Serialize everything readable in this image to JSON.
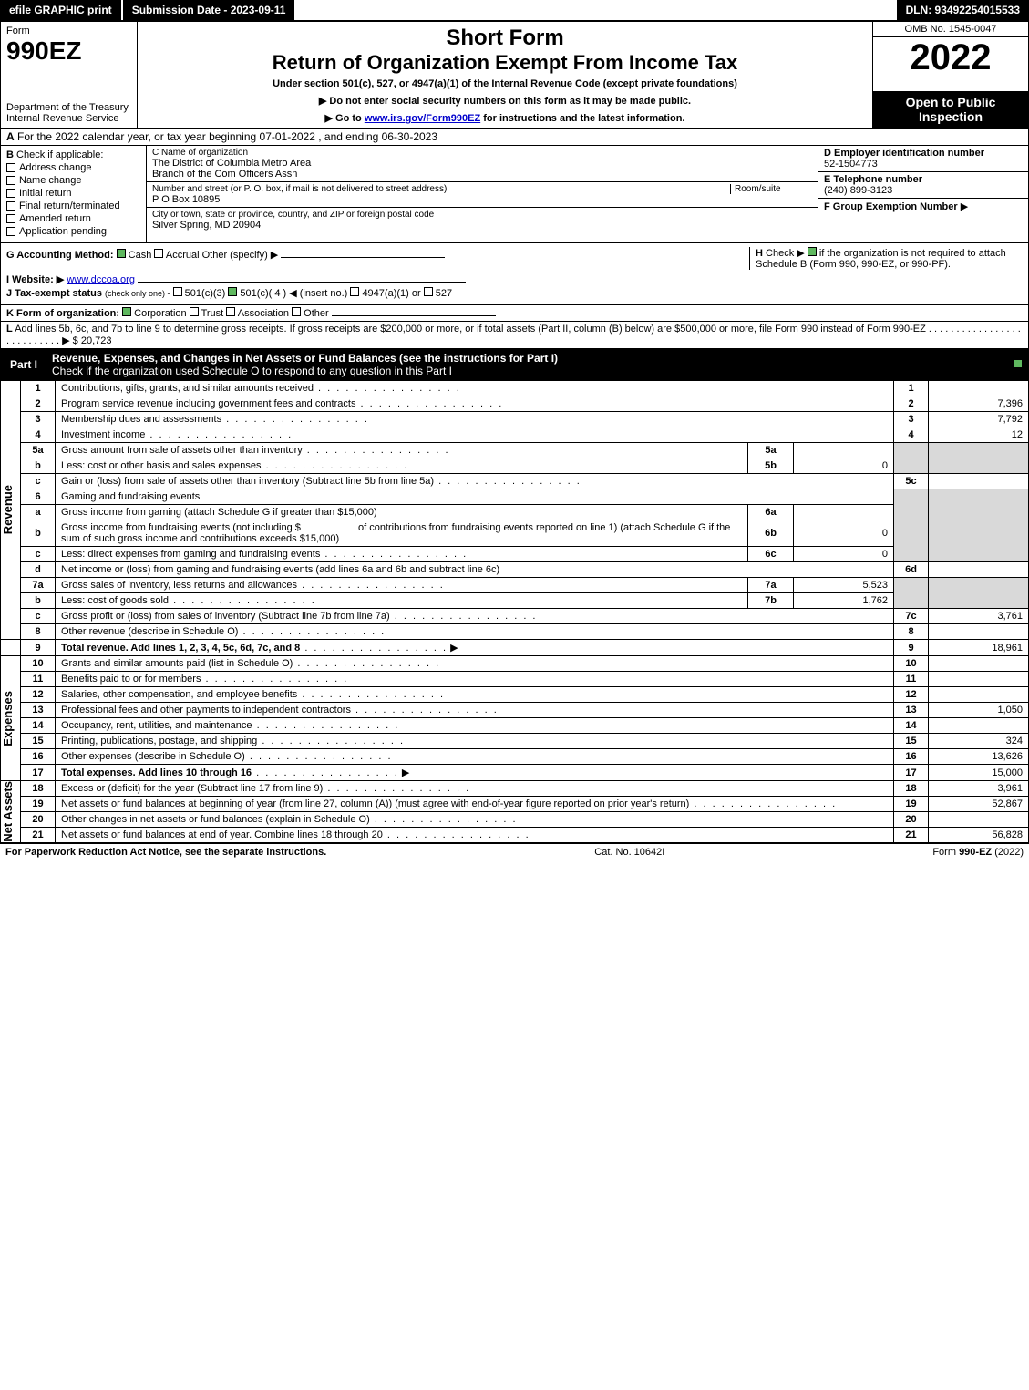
{
  "topbar": {
    "efile": "efile GRAPHIC print",
    "submission": "Submission Date - 2023-09-11",
    "dln": "DLN: 93492254015533"
  },
  "header": {
    "form_label": "Form",
    "form_no": "990EZ",
    "dept": "Department of the Treasury\nInternal Revenue Service",
    "short_form": "Short Form",
    "return_title": "Return of Organization Exempt From Income Tax",
    "under_section": "Under section 501(c), 527, or 4947(a)(1) of the Internal Revenue Code (except private foundations)",
    "instr1": "▶ Do not enter social security numbers on this form as it may be made public.",
    "instr2_a": "▶ Go to ",
    "instr2_link": "www.irs.gov/Form990EZ",
    "instr2_b": " for instructions and the latest information.",
    "omb": "OMB No. 1545-0047",
    "year": "2022",
    "open": "Open to Public Inspection"
  },
  "section_a": {
    "label": "A",
    "text": "For the 2022 calendar year, or tax year beginning 07-01-2022 , and ending 06-30-2023"
  },
  "col_b": {
    "label": "B",
    "heading": "Check if applicable:",
    "items": [
      {
        "label": "Address change",
        "checked": false
      },
      {
        "label": "Name change",
        "checked": false
      },
      {
        "label": "Initial return",
        "checked": false
      },
      {
        "label": "Final return/terminated",
        "checked": false
      },
      {
        "label": "Amended return",
        "checked": false
      },
      {
        "label": "Application pending",
        "checked": false
      }
    ]
  },
  "col_c": {
    "label_name": "C Name of organization",
    "name1": "The District of Columbia Metro Area",
    "name2": "Branch of the Com Officers Assn",
    "label_street": "Number and street (or P. O. box, if mail is not delivered to street address)",
    "room_label": "Room/suite",
    "street": "P O Box 10895",
    "label_city": "City or town, state or province, country, and ZIP or foreign postal code",
    "city": "Silver Spring, MD  20904"
  },
  "col_de": {
    "d_label": "D Employer identification number",
    "d_val": "52-1504773",
    "e_label": "E Telephone number",
    "e_val": "(240) 899-3123",
    "f_label": "F Group Exemption Number",
    "f_arrow": "▶"
  },
  "row_g": {
    "g_label": "G Accounting Method:",
    "cash": "Cash",
    "accrual": "Accrual",
    "other": "Other (specify) ▶",
    "h_label": "H",
    "h_text1": "Check ▶",
    "h_text2": "if the organization is not required to attach Schedule B (Form 990, 990-EZ, or 990-PF).",
    "i_label": "I Website: ▶",
    "i_val": "www.dccoa.org",
    "j_label": "J Tax-exempt status",
    "j_note": "(check only one) -",
    "j_501c3": "501(c)(3)",
    "j_501c": "501(c)( 4 ) ◀ (insert no.)",
    "j_4947": "4947(a)(1) or",
    "j_527": "527"
  },
  "section_k": {
    "label": "K Form of organization:",
    "corp": "Corporation",
    "trust": "Trust",
    "assoc": "Association",
    "other": "Other"
  },
  "section_l": {
    "label": "L",
    "text": "Add lines 5b, 6c, and 7b to line 9 to determine gross receipts. If gross receipts are $200,000 or more, or if total assets (Part II, column (B) below) are $500,000 or more, file Form 990 instead of Form 990-EZ",
    "arrow": "▶ $",
    "val": "20,723"
  },
  "part1": {
    "label": "Part I",
    "title": "Revenue, Expenses, and Changes in Net Assets or Fund Balances (see the instructions for Part I)",
    "subtitle": "Check if the organization used Schedule O to respond to any question in this Part I"
  },
  "vlabels": {
    "revenue": "Revenue",
    "expenses": "Expenses",
    "netassets": "Net Assets"
  },
  "lines": {
    "1": {
      "desc": "Contributions, gifts, grants, and similar amounts received",
      "rnum": "1",
      "rval": ""
    },
    "2": {
      "desc": "Program service revenue including government fees and contracts",
      "rnum": "2",
      "rval": "7,396"
    },
    "3": {
      "desc": "Membership dues and assessments",
      "rnum": "3",
      "rval": "7,792"
    },
    "4": {
      "desc": "Investment income",
      "rnum": "4",
      "rval": "12"
    },
    "5a": {
      "desc": "Gross amount from sale of assets other than inventory",
      "sub": "5a",
      "sval": ""
    },
    "5b": {
      "desc": "Less: cost or other basis and sales expenses",
      "sub": "5b",
      "sval": "0"
    },
    "5c": {
      "desc": "Gain or (loss) from sale of assets other than inventory (Subtract line 5b from line 5a)",
      "rnum": "5c",
      "rval": ""
    },
    "6": {
      "desc": "Gaming and fundraising events"
    },
    "6a": {
      "desc": "Gross income from gaming (attach Schedule G if greater than $15,000)",
      "sub": "6a",
      "sval": ""
    },
    "6b": {
      "desc_a": "Gross income from fundraising events (not including $",
      "desc_b": "of contributions from fundraising events reported on line 1) (attach Schedule G if the sum of such gross income and contributions exceeds $15,000)",
      "sub": "6b",
      "sval": "0"
    },
    "6c": {
      "desc": "Less: direct expenses from gaming and fundraising events",
      "sub": "6c",
      "sval": "0"
    },
    "6d": {
      "desc": "Net income or (loss) from gaming and fundraising events (add lines 6a and 6b and subtract line 6c)",
      "rnum": "6d",
      "rval": ""
    },
    "7a": {
      "desc": "Gross sales of inventory, less returns and allowances",
      "sub": "7a",
      "sval": "5,523"
    },
    "7b": {
      "desc": "Less: cost of goods sold",
      "sub": "7b",
      "sval": "1,762"
    },
    "7c": {
      "desc": "Gross profit or (loss) from sales of inventory (Subtract line 7b from line 7a)",
      "rnum": "7c",
      "rval": "3,761"
    },
    "8": {
      "desc": "Other revenue (describe in Schedule O)",
      "rnum": "8",
      "rval": ""
    },
    "9": {
      "desc": "Total revenue. Add lines 1, 2, 3, 4, 5c, 6d, 7c, and 8",
      "rnum": "9",
      "rval": "18,961",
      "arrow": "▶"
    },
    "10": {
      "desc": "Grants and similar amounts paid (list in Schedule O)",
      "rnum": "10",
      "rval": ""
    },
    "11": {
      "desc": "Benefits paid to or for members",
      "rnum": "11",
      "rval": ""
    },
    "12": {
      "desc": "Salaries, other compensation, and employee benefits",
      "rnum": "12",
      "rval": ""
    },
    "13": {
      "desc": "Professional fees and other payments to independent contractors",
      "rnum": "13",
      "rval": "1,050"
    },
    "14": {
      "desc": "Occupancy, rent, utilities, and maintenance",
      "rnum": "14",
      "rval": ""
    },
    "15": {
      "desc": "Printing, publications, postage, and shipping",
      "rnum": "15",
      "rval": "324"
    },
    "16": {
      "desc": "Other expenses (describe in Schedule O)",
      "rnum": "16",
      "rval": "13,626"
    },
    "17": {
      "desc": "Total expenses. Add lines 10 through 16",
      "rnum": "17",
      "rval": "15,000",
      "arrow": "▶"
    },
    "18": {
      "desc": "Excess or (deficit) for the year (Subtract line 17 from line 9)",
      "rnum": "18",
      "rval": "3,961"
    },
    "19": {
      "desc": "Net assets or fund balances at beginning of year (from line 27, column (A)) (must agree with end-of-year figure reported on prior year's return)",
      "rnum": "19",
      "rval": "52,867"
    },
    "20": {
      "desc": "Other changes in net assets or fund balances (explain in Schedule O)",
      "rnum": "20",
      "rval": ""
    },
    "21": {
      "desc": "Net assets or fund balances at end of year. Combine lines 18 through 20",
      "rnum": "21",
      "rval": "56,828"
    }
  },
  "footer": {
    "left": "For Paperwork Reduction Act Notice, see the separate instructions.",
    "mid": "Cat. No. 10642I",
    "right": "Form 990-EZ (2022)"
  },
  "colors": {
    "black": "#000000",
    "shade": "#d9d9d9",
    "check_green": "#5fb85f"
  }
}
